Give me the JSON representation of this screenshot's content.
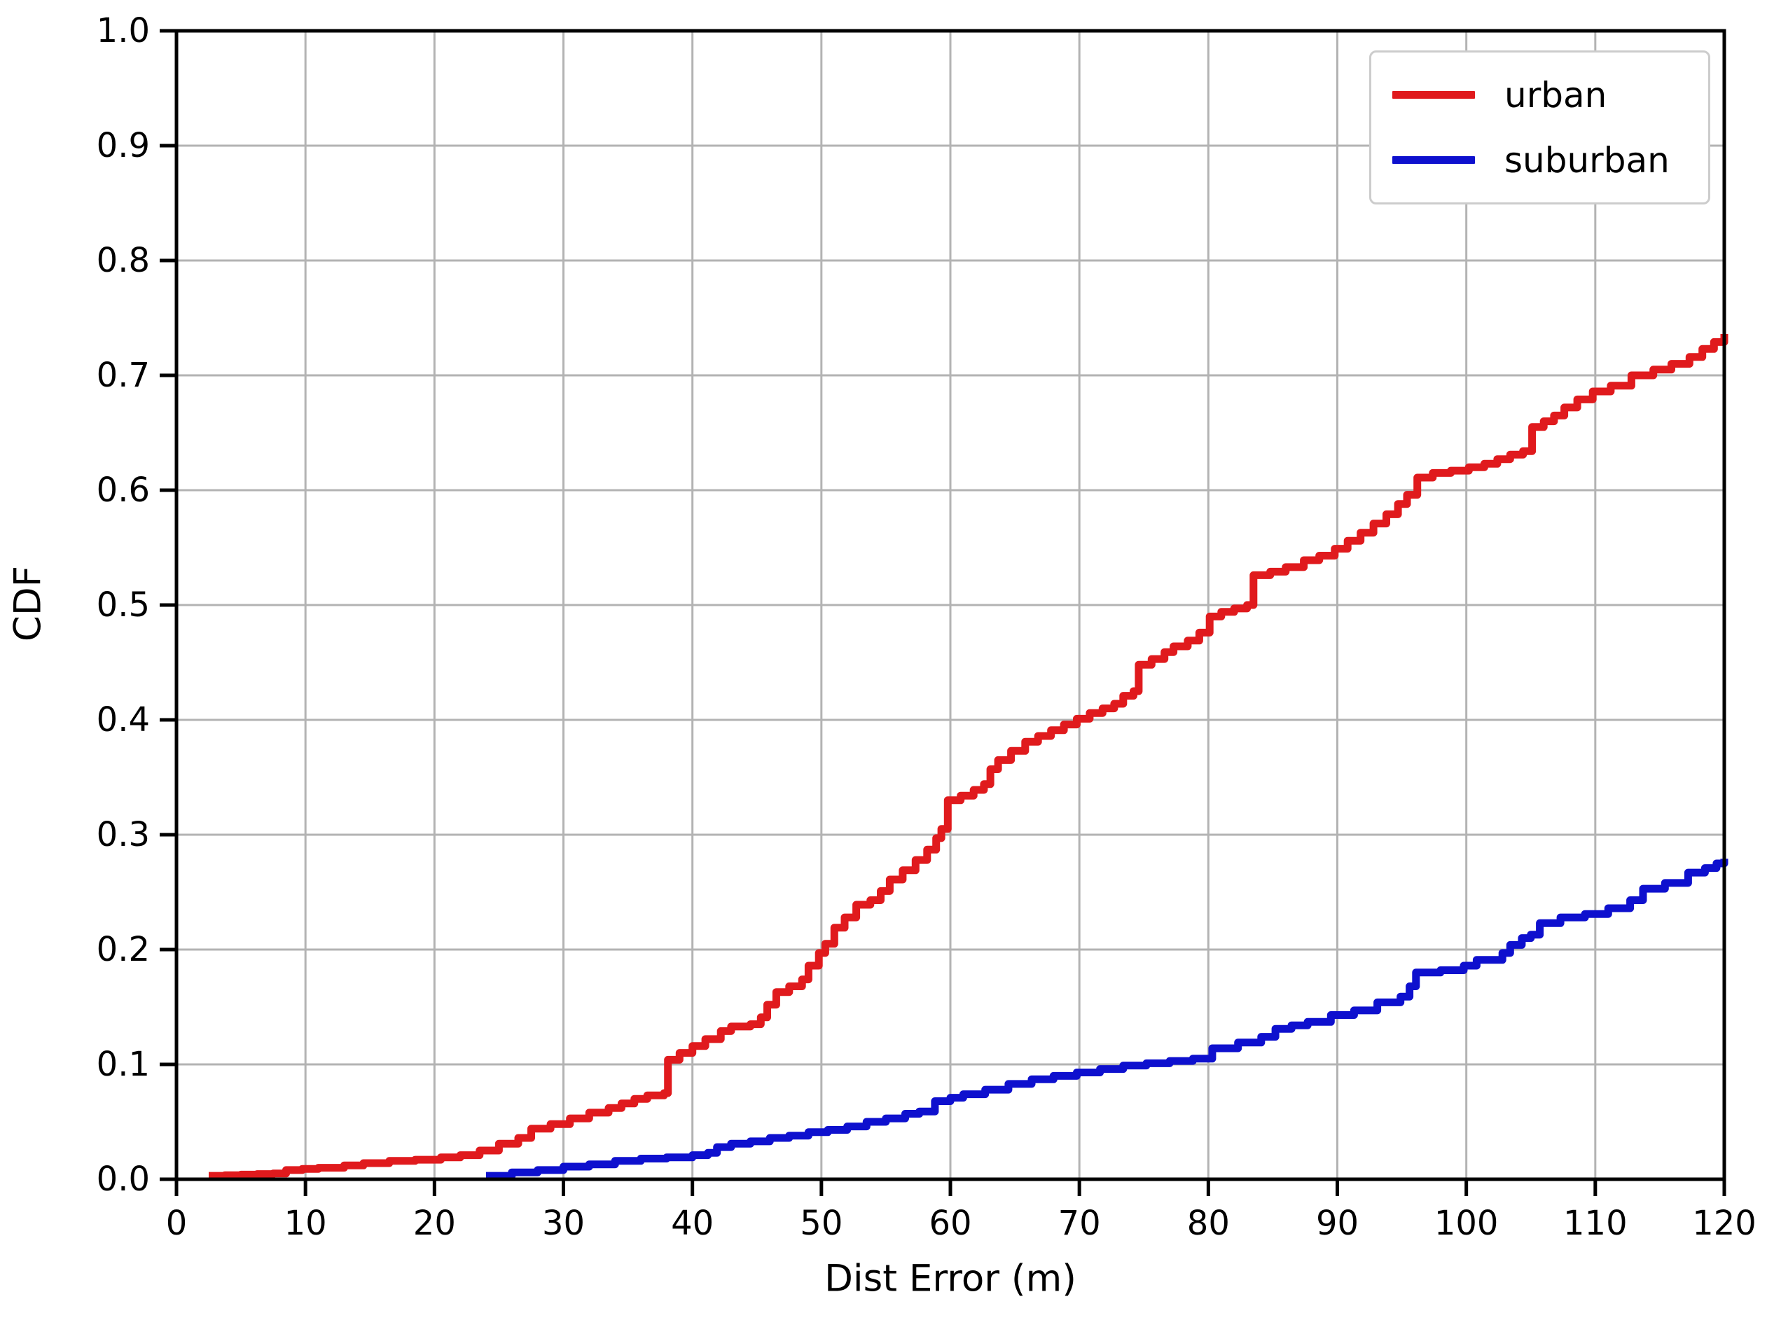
{
  "chart_data": {
    "type": "line",
    "title": "",
    "xlabel": "Dist Error (m)",
    "ylabel": "CDF",
    "xlim": [
      0,
      120
    ],
    "ylim": [
      0.0,
      1.0
    ],
    "grid": true,
    "legend_position": "upper right",
    "x_ticks": [
      "0",
      "10",
      "20",
      "30",
      "40",
      "50",
      "60",
      "70",
      "80",
      "90",
      "100",
      "110",
      "120"
    ],
    "y_ticks": [
      "0.0",
      "0.1",
      "0.2",
      "0.3",
      "0.4",
      "0.5",
      "0.6",
      "0.7",
      "0.8",
      "0.9",
      "1.0"
    ],
    "colors": {
      "urban": "#e01a1d",
      "suburban": "#0e10ce",
      "grid": "#b3b3b3",
      "axis": "#000000",
      "legend_border": "#cccccc"
    },
    "series": [
      {
        "name": "urban",
        "color": "#e01a1d",
        "points": [
          [
            2.5,
            0.003
          ],
          [
            5,
            0.004
          ],
          [
            7.5,
            0.005
          ],
          [
            8.5,
            0.008
          ],
          [
            11,
            0.01
          ],
          [
            13,
            0.012
          ],
          [
            14.5,
            0.014
          ],
          [
            16.5,
            0.016
          ],
          [
            18.5,
            0.017
          ],
          [
            20.5,
            0.019
          ],
          [
            22,
            0.021
          ],
          [
            23.5,
            0.025
          ],
          [
            25,
            0.031
          ],
          [
            26.5,
            0.036
          ],
          [
            27.5,
            0.044
          ],
          [
            29,
            0.048
          ],
          [
            30.5,
            0.053
          ],
          [
            32,
            0.058
          ],
          [
            33.5,
            0.062
          ],
          [
            34.5,
            0.066
          ],
          [
            35.5,
            0.07
          ],
          [
            36.5,
            0.073
          ],
          [
            37.8,
            0.075
          ],
          [
            38.1,
            0.104
          ],
          [
            39,
            0.11
          ],
          [
            40,
            0.116
          ],
          [
            41,
            0.122
          ],
          [
            42.2,
            0.129
          ],
          [
            43,
            0.133
          ],
          [
            44.5,
            0.135
          ],
          [
            45.3,
            0.141
          ],
          [
            45.8,
            0.152
          ],
          [
            46.5,
            0.163
          ],
          [
            47.5,
            0.168
          ],
          [
            48.5,
            0.174
          ],
          [
            49,
            0.186
          ],
          [
            49.8,
            0.197
          ],
          [
            50.3,
            0.205
          ],
          [
            51,
            0.219
          ],
          [
            51.8,
            0.228
          ],
          [
            52.7,
            0.239
          ],
          [
            53.8,
            0.243
          ],
          [
            54.6,
            0.251
          ],
          [
            55.3,
            0.261
          ],
          [
            56.3,
            0.269
          ],
          [
            57.3,
            0.278
          ],
          [
            58.2,
            0.287
          ],
          [
            58.9,
            0.297
          ],
          [
            59.3,
            0.305
          ],
          [
            59.8,
            0.33
          ],
          [
            60.8,
            0.334
          ],
          [
            61.8,
            0.339
          ],
          [
            62.6,
            0.344
          ],
          [
            63.1,
            0.357
          ],
          [
            63.7,
            0.365
          ],
          [
            64.7,
            0.373
          ],
          [
            65.8,
            0.381
          ],
          [
            66.8,
            0.386
          ],
          [
            67.8,
            0.391
          ],
          [
            68.8,
            0.396
          ],
          [
            69.8,
            0.401
          ],
          [
            70.8,
            0.406
          ],
          [
            71.8,
            0.41
          ],
          [
            72.7,
            0.414
          ],
          [
            73.4,
            0.421
          ],
          [
            74.2,
            0.425
          ],
          [
            74.6,
            0.448
          ],
          [
            75.6,
            0.453
          ],
          [
            76.6,
            0.459
          ],
          [
            77.3,
            0.464
          ],
          [
            78.4,
            0.469
          ],
          [
            79.3,
            0.476
          ],
          [
            80.1,
            0.49
          ],
          [
            81,
            0.494
          ],
          [
            82,
            0.497
          ],
          [
            83,
            0.5
          ],
          [
            83.5,
            0.526
          ],
          [
            84.8,
            0.529
          ],
          [
            86,
            0.533
          ],
          [
            87.4,
            0.539
          ],
          [
            88.6,
            0.543
          ],
          [
            89.8,
            0.549
          ],
          [
            90.8,
            0.556
          ],
          [
            91.8,
            0.563
          ],
          [
            92.8,
            0.571
          ],
          [
            93.8,
            0.579
          ],
          [
            94.7,
            0.588
          ],
          [
            95.4,
            0.596
          ],
          [
            96.2,
            0.611
          ],
          [
            97.4,
            0.615
          ],
          [
            98.8,
            0.617
          ],
          [
            100.2,
            0.62
          ],
          [
            101.4,
            0.623
          ],
          [
            102.4,
            0.627
          ],
          [
            103.4,
            0.631
          ],
          [
            104.4,
            0.634
          ],
          [
            105.1,
            0.655
          ],
          [
            106,
            0.66
          ],
          [
            106.8,
            0.665
          ],
          [
            107.6,
            0.672
          ],
          [
            108.6,
            0.679
          ],
          [
            109.8,
            0.686
          ],
          [
            111.2,
            0.691
          ],
          [
            112.8,
            0.7
          ],
          [
            114.5,
            0.705
          ],
          [
            115.9,
            0.71
          ],
          [
            117.3,
            0.716
          ],
          [
            118.3,
            0.723
          ],
          [
            119.2,
            0.729
          ],
          [
            120,
            0.736
          ]
        ]
      },
      {
        "name": "suburban",
        "color": "#0e10ce",
        "points": [
          [
            24,
            0.003
          ],
          [
            26,
            0.006
          ],
          [
            28,
            0.008
          ],
          [
            30,
            0.011
          ],
          [
            32,
            0.013
          ],
          [
            34,
            0.016
          ],
          [
            36,
            0.018
          ],
          [
            38,
            0.019
          ],
          [
            40,
            0.021
          ],
          [
            41.2,
            0.023
          ],
          [
            41.9,
            0.028
          ],
          [
            43,
            0.031
          ],
          [
            44.5,
            0.033
          ],
          [
            46,
            0.036
          ],
          [
            47.5,
            0.038
          ],
          [
            49,
            0.041
          ],
          [
            50.5,
            0.043
          ],
          [
            52,
            0.046
          ],
          [
            53.5,
            0.05
          ],
          [
            55,
            0.053
          ],
          [
            56.5,
            0.057
          ],
          [
            57.6,
            0.059
          ],
          [
            58.8,
            0.068
          ],
          [
            60,
            0.071
          ],
          [
            61,
            0.074
          ],
          [
            62.7,
            0.078
          ],
          [
            64.5,
            0.083
          ],
          [
            66.3,
            0.087
          ],
          [
            68,
            0.09
          ],
          [
            69.8,
            0.093
          ],
          [
            71.6,
            0.096
          ],
          [
            73.4,
            0.099
          ],
          [
            75.2,
            0.101
          ],
          [
            77,
            0.103
          ],
          [
            78.8,
            0.105
          ],
          [
            80.3,
            0.114
          ],
          [
            82.3,
            0.119
          ],
          [
            84.1,
            0.124
          ],
          [
            85.2,
            0.131
          ],
          [
            87.7,
            0.137
          ],
          [
            89.5,
            0.143
          ],
          [
            91.3,
            0.147
          ],
          [
            93.1,
            0.154
          ],
          [
            94.9,
            0.159
          ],
          [
            95.6,
            0.168
          ],
          [
            96.1,
            0.18
          ],
          [
            98,
            0.182
          ],
          [
            99.8,
            0.186
          ],
          [
            100.8,
            0.191
          ],
          [
            102.8,
            0.197
          ],
          [
            103.4,
            0.204
          ],
          [
            104.3,
            0.21
          ],
          [
            105,
            0.213
          ],
          [
            105.7,
            0.223
          ],
          [
            107.3,
            0.228
          ],
          [
            109.2,
            0.231
          ],
          [
            111,
            0.236
          ],
          [
            112.7,
            0.243
          ],
          [
            113.7,
            0.253
          ],
          [
            115.4,
            0.258
          ],
          [
            117.2,
            0.267
          ],
          [
            118.5,
            0.271
          ],
          [
            119.4,
            0.275
          ],
          [
            120,
            0.279
          ]
        ]
      }
    ]
  }
}
